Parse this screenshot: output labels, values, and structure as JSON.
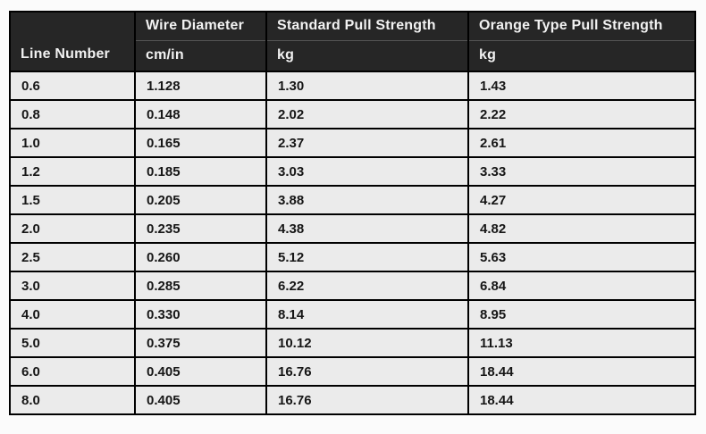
{
  "colors": {
    "page_bg": "#fbfbfb",
    "header_bg": "#262626",
    "header_text": "#f2f2f2",
    "row_bg": "#ebebeb",
    "cell_text": "#161616",
    "border": "#000000"
  },
  "table": {
    "corner_header": "Line Number",
    "groups": [
      {
        "label": "Wire Diameter",
        "unit": "cm/in"
      },
      {
        "label": "Standard Pull Strength",
        "unit": "kg"
      },
      {
        "label": "Orange Type Pull Strength",
        "unit": "kg"
      }
    ],
    "rows": [
      [
        "0.6",
        "1.128",
        "1.30",
        "1.43"
      ],
      [
        "0.8",
        "0.148",
        "2.02",
        "2.22"
      ],
      [
        "1.0",
        "0.165",
        "2.37",
        "2.61"
      ],
      [
        "1.2",
        "0.185",
        "3.03",
        "3.33"
      ],
      [
        "1.5",
        "0.205",
        "3.88",
        "4.27"
      ],
      [
        "2.0",
        "0.235",
        "4.38",
        "4.82"
      ],
      [
        "2.5",
        "0.260",
        "5.12",
        "5.63"
      ],
      [
        "3.0",
        "0.285",
        "6.22",
        "6.84"
      ],
      [
        "4.0",
        "0.330",
        "8.14",
        "8.95"
      ],
      [
        "5.0",
        "0.375",
        "10.12",
        "11.13"
      ],
      [
        "6.0",
        "0.405",
        "16.76",
        "18.44"
      ],
      [
        "8.0",
        "0.405",
        "16.76",
        "18.44"
      ]
    ]
  },
  "chart_data": {
    "type": "table",
    "title": "",
    "columns": [
      "Line Number",
      "Wire Diameter cm/in",
      "Standard Pull Strength kg",
      "Orange Type Pull Strength kg"
    ],
    "rows": [
      [
        "0.6",
        "1.128",
        "1.30",
        "1.43"
      ],
      [
        "0.8",
        "0.148",
        "2.02",
        "2.22"
      ],
      [
        "1.0",
        "0.165",
        "2.37",
        "2.61"
      ],
      [
        "1.2",
        "0.185",
        "3.03",
        "3.33"
      ],
      [
        "1.5",
        "0.205",
        "3.88",
        "4.27"
      ],
      [
        "2.0",
        "0.235",
        "4.38",
        "4.82"
      ],
      [
        "2.5",
        "0.260",
        "5.12",
        "5.63"
      ],
      [
        "3.0",
        "0.285",
        "6.22",
        "6.84"
      ],
      [
        "4.0",
        "0.330",
        "8.14",
        "8.95"
      ],
      [
        "5.0",
        "0.375",
        "10.12",
        "11.13"
      ],
      [
        "6.0",
        "0.405",
        "16.76",
        "18.44"
      ],
      [
        "8.0",
        "0.405",
        "16.76",
        "18.44"
      ]
    ]
  }
}
